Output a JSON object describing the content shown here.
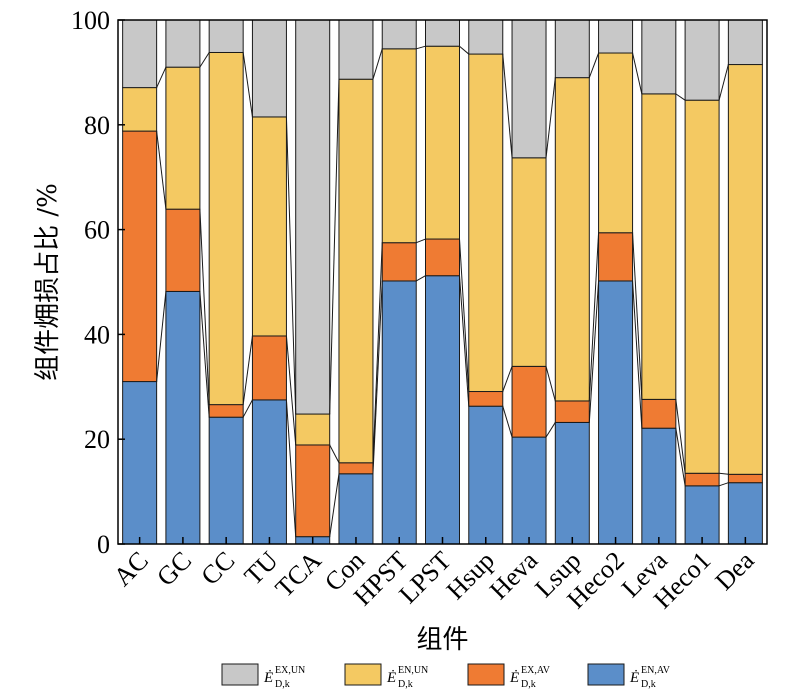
{
  "chart_data": {
    "type": "bar",
    "stacked": true,
    "xlabel": "组件",
    "ylabel": "组件㶲损占比 /%",
    "ylim": [
      0,
      100
    ],
    "yticks": [
      0,
      20,
      40,
      60,
      80,
      100
    ],
    "grid": false,
    "legend_position": "bottom",
    "categories": [
      "AC",
      "GC",
      "CC",
      "TU",
      "TCA",
      "Con",
      "HPST",
      "LPST",
      "Hsup",
      "Heva",
      "Lsup",
      "Heco2",
      "Leva",
      "Heco1",
      "Dea"
    ],
    "series": [
      {
        "key": "en_av",
        "legend": {
          "base": "Ė",
          "sub": "D,k",
          "sup": "EN,AV"
        },
        "color": "#5b8ec9",
        "values": [
          31,
          48.2,
          24.2,
          27.5,
          1.4,
          13.4,
          50.2,
          51.2,
          26.3,
          20.4,
          23.2,
          50.2,
          22.1,
          11.1,
          11.7
        ]
      },
      {
        "key": "ex_av",
        "legend": {
          "base": "Ė",
          "sub": "D,k",
          "sup": "EX,AV"
        },
        "color": "#ef7b33",
        "values": [
          47.8,
          15.7,
          2.4,
          12.2,
          17.5,
          2.1,
          7.3,
          7,
          2.8,
          13.5,
          4.1,
          9.2,
          5.5,
          2.4,
          1.6
        ]
      },
      {
        "key": "en_un",
        "legend": {
          "base": "Ė",
          "sub": "D,k",
          "sup": "EN,UN"
        },
        "color": "#f4c962",
        "values": [
          8.3,
          27.1,
          67.2,
          41.8,
          5.9,
          73.2,
          37,
          36.8,
          64.4,
          39.8,
          61.7,
          34.3,
          58.3,
          71.2,
          78.2
        ]
      },
      {
        "key": "ex_un",
        "legend": {
          "base": "Ė",
          "sub": "D,k",
          "sup": "EX,UN"
        },
        "color": "#c8c8c8",
        "values": [
          12.9,
          9,
          6.2,
          18.5,
          75.2,
          11.3,
          5.5,
          5,
          6.5,
          26.3,
          11,
          6.3,
          14.1,
          15.3,
          8.5
        ]
      }
    ],
    "legend_order": [
      "ex_un",
      "en_un",
      "ex_av",
      "en_av"
    ]
  }
}
